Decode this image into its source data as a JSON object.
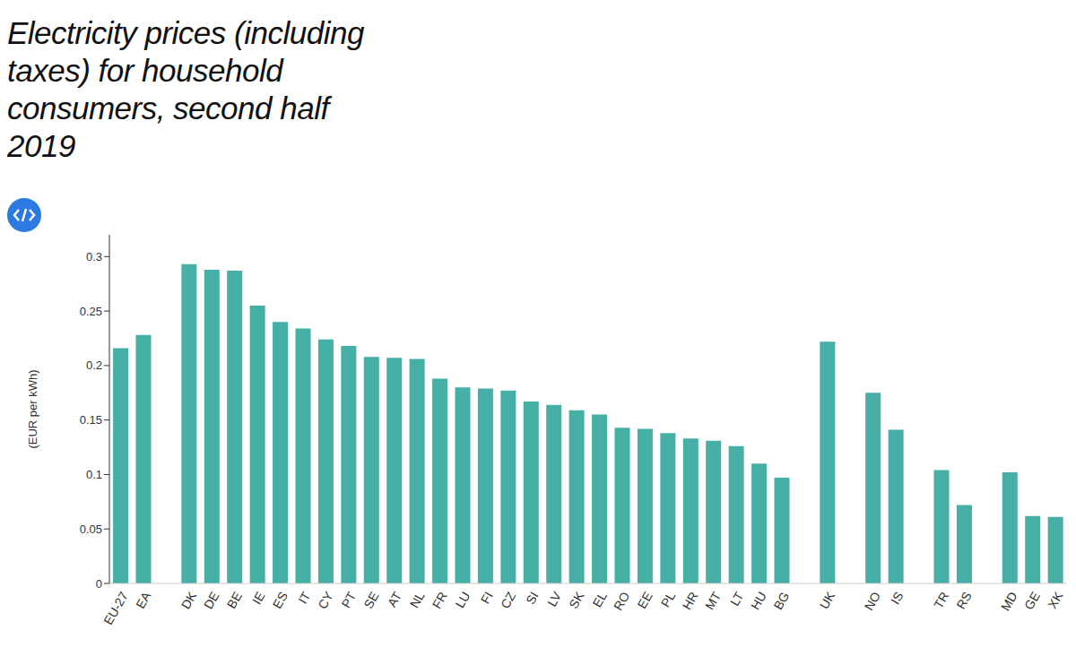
{
  "chart_data": {
    "type": "bar",
    "title": "Electricity prices (including taxes) for household consumers, second half 2019",
    "y_label": "(EUR per kWh)",
    "categories": [
      "EU-27",
      "EA",
      null,
      "DK",
      "DE",
      "BE",
      "IE",
      "ES",
      "IT",
      "CY",
      "PT",
      "SE",
      "AT",
      "NL",
      "FR",
      "LU",
      "FI",
      "CZ",
      "SI",
      "LV",
      "SK",
      "EL",
      "RO",
      "EE",
      "PL",
      "HR",
      "MT",
      "LT",
      "HU",
      "BG",
      null,
      "UK",
      null,
      "NO",
      "IS",
      null,
      "TR",
      "RS",
      null,
      "MD",
      "GE",
      "XK"
    ],
    "values": [
      0.216,
      0.228,
      null,
      0.293,
      0.288,
      0.287,
      0.255,
      0.24,
      0.234,
      0.224,
      0.218,
      0.208,
      0.207,
      0.206,
      0.188,
      0.18,
      0.179,
      0.177,
      0.167,
      0.164,
      0.159,
      0.155,
      0.143,
      0.142,
      0.138,
      0.133,
      0.131,
      0.126,
      0.11,
      0.097,
      null,
      0.222,
      null,
      0.175,
      0.141,
      null,
      0.104,
      0.072,
      null,
      0.102,
      0.062,
      0.061
    ],
    "color": "#46afa6",
    "ylim": [
      0,
      0.32
    ],
    "yticks": [
      0,
      0.05,
      0.1,
      0.15,
      0.2,
      0.25,
      0.3
    ]
  }
}
